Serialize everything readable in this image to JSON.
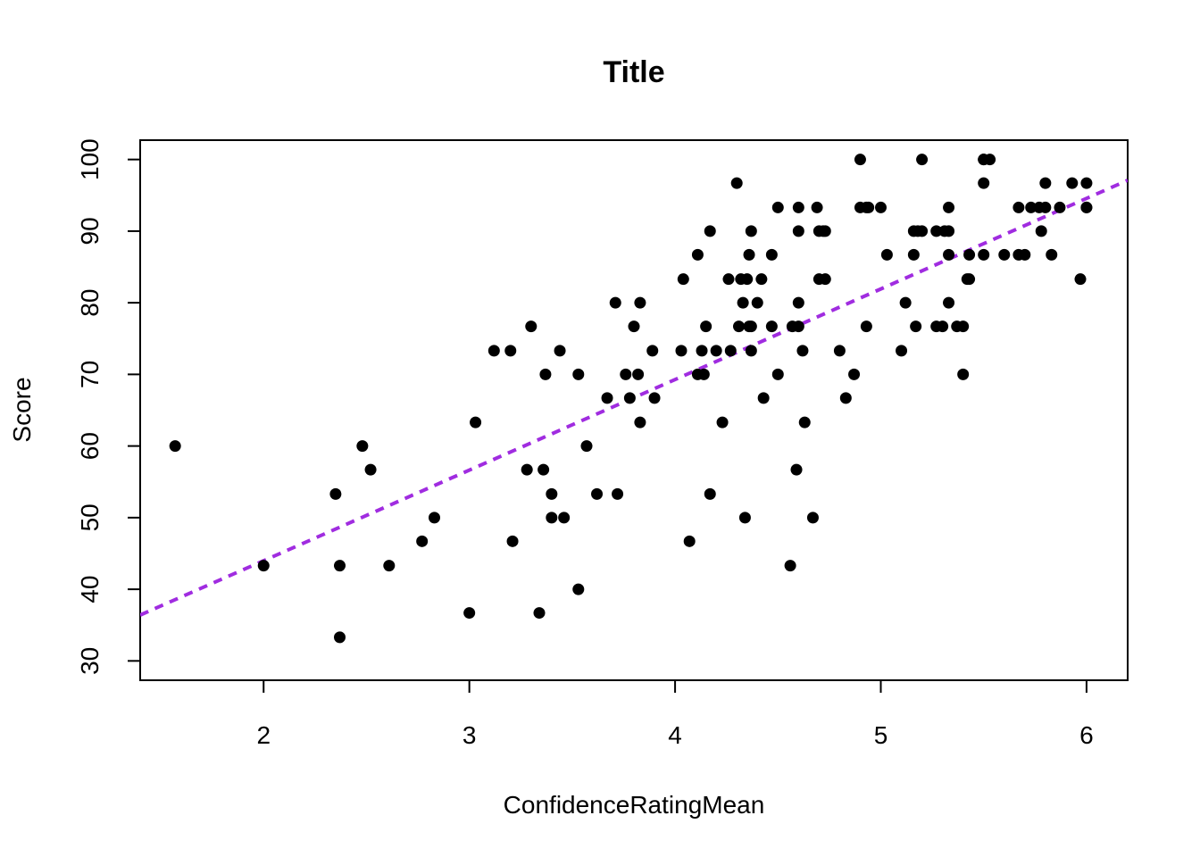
{
  "chart_data": {
    "type": "scatter",
    "title": "Title",
    "xlabel": "ConfidenceRatingMean",
    "ylabel": "Score",
    "xlim": [
      1.4,
      6.2
    ],
    "ylim": [
      27.3,
      102.7
    ],
    "xticks": [
      2,
      3,
      4,
      5,
      6
    ],
    "yticks": [
      30,
      40,
      50,
      60,
      70,
      80,
      90,
      100
    ],
    "grid": false,
    "legend": "none",
    "point_color": "#000000",
    "trendline": {
      "style": "dashed",
      "color": "#a02ce0",
      "x": [
        1.4,
        6.2
      ],
      "y": [
        36.4,
        97.1
      ]
    },
    "series": [
      {
        "x": [
          1.57,
          2.0,
          2.35,
          2.37,
          2.37,
          2.48,
          2.52,
          2.61,
          2.77,
          2.83,
          3.0,
          3.03,
          3.12,
          3.2,
          3.21,
          3.28,
          3.3,
          3.34,
          3.36,
          3.37,
          3.4,
          3.4,
          3.44,
          3.46,
          3.53,
          3.53,
          3.57,
          3.62,
          3.67,
          3.71,
          3.72,
          3.76,
          3.78,
          3.8,
          3.82,
          3.83,
          3.83,
          3.89,
          3.9,
          4.03,
          4.04,
          4.07,
          4.11,
          4.11,
          4.13,
          4.14,
          4.15,
          4.17,
          4.17,
          4.2,
          4.23,
          4.26,
          4.27,
          4.3,
          4.31,
          4.32,
          4.33,
          4.34,
          4.35,
          4.36,
          4.36,
          4.37,
          4.37,
          4.37,
          4.4,
          4.42,
          4.43,
          4.47,
          4.47,
          4.5,
          4.5,
          4.56,
          4.57,
          4.59,
          4.6,
          4.6,
          4.6,
          4.6,
          4.62,
          4.63,
          4.67,
          4.69,
          4.7,
          4.7,
          4.72,
          4.73,
          4.73,
          4.8,
          4.83,
          4.87,
          4.9,
          4.9,
          4.93,
          4.93,
          4.94,
          5.0,
          5.03,
          5.1,
          5.12,
          5.16,
          5.16,
          5.17,
          5.18,
          5.2,
          5.2,
          5.27,
          5.27,
          5.3,
          5.31,
          5.33,
          5.33,
          5.33,
          5.33,
          5.37,
          5.4,
          5.4,
          5.42,
          5.43,
          5.43,
          5.5,
          5.5,
          5.5,
          5.5,
          5.53,
          5.6,
          5.67,
          5.67,
          5.7,
          5.73,
          5.77,
          5.78,
          5.8,
          5.8,
          5.83,
          5.87,
          5.93,
          5.97,
          6.0,
          6.0,
          6.0
        ],
        "y": [
          60,
          43.3,
          53.3,
          43.3,
          33.3,
          60,
          56.7,
          43.3,
          46.7,
          50,
          36.7,
          63.3,
          73.3,
          73.3,
          46.7,
          56.7,
          76.7,
          36.7,
          56.7,
          70,
          53.3,
          50,
          73.3,
          50,
          70,
          40,
          60,
          53.3,
          66.7,
          80,
          53.3,
          70,
          66.7,
          76.7,
          70,
          80,
          63.3,
          73.3,
          66.7,
          73.3,
          83.3,
          46.7,
          86.7,
          70,
          73.3,
          70,
          76.7,
          90,
          53.3,
          73.3,
          63.3,
          83.3,
          73.3,
          96.7,
          76.7,
          83.3,
          80,
          50,
          83.3,
          76.7,
          86.7,
          90,
          73.3,
          76.7,
          80,
          83.3,
          66.7,
          86.7,
          76.7,
          93.3,
          70,
          43.3,
          76.7,
          56.7,
          93.3,
          90,
          80,
          76.7,
          73.3,
          63.3,
          50,
          93.3,
          83.3,
          90,
          90,
          83.3,
          90,
          73.3,
          66.7,
          70,
          100,
          93.3,
          93.3,
          76.7,
          93.3,
          93.3,
          86.7,
          73.3,
          80,
          90,
          86.7,
          76.7,
          90,
          100,
          90,
          90,
          76.7,
          76.7,
          90,
          93.3,
          86.7,
          90,
          80,
          76.7,
          70,
          76.7,
          83.3,
          83.3,
          86.7,
          100,
          96.7,
          86.7,
          100,
          100,
          86.7,
          93.3,
          86.7,
          86.7,
          93.3,
          93.3,
          90,
          96.7,
          93.3,
          86.7,
          93.3,
          96.7,
          83.3,
          96.7,
          93.3,
          93.3
        ]
      }
    ]
  }
}
